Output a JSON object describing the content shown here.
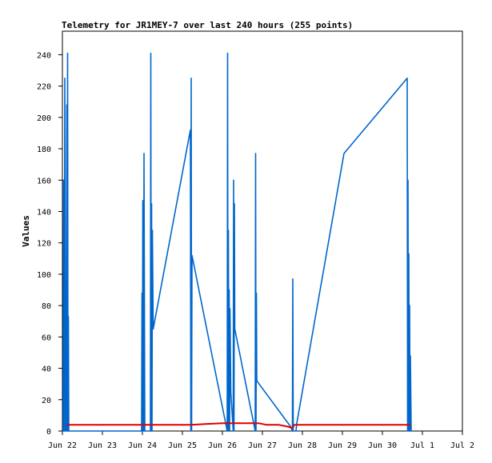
{
  "chart_data": {
    "type": "line",
    "title": "Telemetry for JR1MEY-7 over last 240 hours (255 points)",
    "xlabel": "",
    "ylabel": "Values",
    "x_tick_labels": [
      "Jun 22",
      "Jun 23",
      "Jun 24",
      "Jun 25",
      "Jun 26",
      "Jun 27",
      "Jun 28",
      "Jun 29",
      "Jun 30",
      "Jul 1",
      "Jul 2"
    ],
    "x_range_days": [
      0,
      10
    ],
    "ylim": [
      0,
      255
    ],
    "y_ticks": [
      0,
      20,
      40,
      60,
      80,
      100,
      120,
      140,
      160,
      180,
      200,
      220,
      240
    ],
    "grid": false,
    "colors": {
      "series_blue": "#0066cc",
      "series_red": "#dd0000",
      "axis": "#000000"
    },
    "series": [
      {
        "color": "#0066cc",
        "points": [
          [
            0.02,
            0
          ],
          [
            0.03,
            160
          ],
          [
            0.05,
            0
          ],
          [
            0.06,
            225
          ],
          [
            0.07,
            113
          ],
          [
            0.08,
            0
          ],
          [
            0.09,
            96
          ],
          [
            0.1,
            0
          ],
          [
            0.11,
            208
          ],
          [
            0.12,
            0
          ],
          [
            0.13,
            241
          ],
          [
            0.14,
            0
          ],
          [
            0.15,
            73
          ],
          [
            0.16,
            0
          ],
          [
            1.98,
            0
          ],
          [
            1.99,
            88
          ],
          [
            2.0,
            0
          ],
          [
            2.01,
            147
          ],
          [
            2.03,
            0
          ],
          [
            2.04,
            177
          ],
          [
            2.06,
            0
          ],
          [
            2.2,
            0
          ],
          [
            2.21,
            241
          ],
          [
            2.22,
            0
          ],
          [
            2.23,
            145
          ],
          [
            2.24,
            0
          ],
          [
            2.25,
            128
          ],
          [
            2.27,
            65
          ],
          [
            3.2,
            192
          ],
          [
            3.21,
            0
          ],
          [
            3.22,
            225
          ],
          [
            3.23,
            0
          ],
          [
            3.24,
            112
          ],
          [
            4.12,
            0
          ],
          [
            4.13,
            241
          ],
          [
            4.14,
            0
          ],
          [
            4.15,
            128
          ],
          [
            4.16,
            0
          ],
          [
            4.17,
            90
          ],
          [
            4.18,
            0
          ],
          [
            4.19,
            78
          ],
          [
            4.21,
            25
          ],
          [
            4.27,
            0
          ],
          [
            4.28,
            160
          ],
          [
            4.29,
            0
          ],
          [
            4.3,
            145
          ],
          [
            4.31,
            65
          ],
          [
            4.82,
            0
          ],
          [
            4.83,
            177
          ],
          [
            4.84,
            0
          ],
          [
            4.85,
            88
          ],
          [
            4.86,
            32
          ],
          [
            5.7,
            3
          ],
          [
            5.75,
            0
          ],
          [
            5.76,
            97
          ],
          [
            5.77,
            0
          ],
          [
            5.84,
            0
          ],
          [
            5.86,
            5
          ],
          [
            7.04,
            177
          ],
          [
            8.62,
            225
          ],
          [
            8.63,
            0
          ],
          [
            8.64,
            160
          ],
          [
            8.65,
            0
          ],
          [
            8.66,
            113
          ],
          [
            8.67,
            0
          ],
          [
            8.68,
            80
          ],
          [
            8.69,
            0
          ],
          [
            8.7,
            48
          ],
          [
            8.72,
            0
          ]
        ]
      },
      {
        "color": "#dd0000",
        "points": [
          [
            0.12,
            4
          ],
          [
            1.0,
            4
          ],
          [
            2.0,
            4
          ],
          [
            3.2,
            4
          ],
          [
            4.0,
            5
          ],
          [
            4.15,
            5
          ],
          [
            4.5,
            5
          ],
          [
            4.9,
            5
          ],
          [
            5.1,
            4
          ],
          [
            5.4,
            4
          ],
          [
            5.6,
            3
          ],
          [
            5.75,
            2
          ],
          [
            5.8,
            4
          ],
          [
            6.2,
            4
          ],
          [
            7.0,
            4
          ],
          [
            8.0,
            4
          ],
          [
            8.7,
            4
          ]
        ]
      }
    ]
  }
}
